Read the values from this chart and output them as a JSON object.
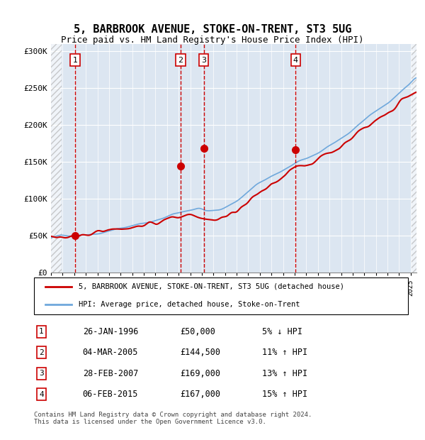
{
  "title": "5, BARBROOK AVENUE, STOKE-ON-TRENT, ST3 5UG",
  "subtitle": "Price paid vs. HM Land Registry's House Price Index (HPI)",
  "xlabel": "",
  "ylabel": "",
  "ylim": [
    0,
    310000
  ],
  "xlim_start": 1994.0,
  "xlim_end": 2025.5,
  "yticks": [
    0,
    50000,
    100000,
    150000,
    200000,
    250000,
    300000
  ],
  "ytick_labels": [
    "£0",
    "£50K",
    "£100K",
    "£150K",
    "£200K",
    "£250K",
    "£300K"
  ],
  "sale_dates": [
    1996.07,
    2005.17,
    2007.16,
    2015.09
  ],
  "sale_prices": [
    50000,
    144500,
    169000,
    167000
  ],
  "sale_labels": [
    "1",
    "2",
    "3",
    "4"
  ],
  "hpi_color": "#6fa8dc",
  "price_color": "#cc0000",
  "bg_plot": "#dce6f1",
  "bg_hatch": "#c0c0c0",
  "legend_line1": "5, BARBROOK AVENUE, STOKE-ON-TRENT, ST3 5UG (detached house)",
  "legend_line2": "HPI: Average price, detached house, Stoke-on-Trent",
  "table_entries": [
    {
      "label": "1",
      "date": "26-JAN-1996",
      "price": "£50,000",
      "pct": "5% ↓ HPI"
    },
    {
      "label": "2",
      "date": "04-MAR-2005",
      "price": "£144,500",
      "pct": "11% ↑ HPI"
    },
    {
      "label": "3",
      "date": "28-FEB-2007",
      "price": "£169,000",
      "pct": "13% ↑ HPI"
    },
    {
      "label": "4",
      "date": "06-FEB-2015",
      "price": "£167,000",
      "pct": "15% ↑ HPI"
    }
  ],
  "footnote": "Contains HM Land Registry data © Crown copyright and database right 2024.\nThis data is licensed under the Open Government Licence v3.0."
}
